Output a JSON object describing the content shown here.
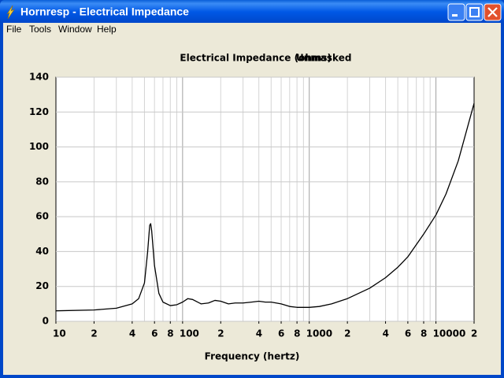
{
  "window": {
    "title": "Hornresp - Electrical Impedance",
    "menu": [
      "File",
      "Tools",
      "Window",
      "Help"
    ]
  },
  "chart_data": {
    "type": "line",
    "title": "Electrical Impedance (ohms)",
    "subtitle": "Unmasked",
    "x_label": "Frequency (hertz)",
    "color": "#000000",
    "log_x": true,
    "grid": true,
    "x": [
      10,
      20,
      30,
      40,
      45,
      50,
      53,
      55,
      56,
      57,
      60,
      65,
      70,
      80,
      90,
      100,
      110,
      120,
      140,
      160,
      180,
      200,
      230,
      260,
      300,
      350,
      400,
      450,
      500,
      600,
      700,
      800,
      1000,
      1200,
      1500,
      2000,
      3000,
      4000,
      5000,
      6000,
      8000,
      10000,
      12000,
      15000,
      20000
    ],
    "values": [
      6,
      6.5,
      7.5,
      10,
      13,
      22,
      40,
      55,
      56,
      52,
      32,
      16,
      11,
      9,
      9.5,
      11,
      13,
      12.5,
      10,
      10.5,
      12,
      11.5,
      10,
      10.5,
      10.5,
      11,
      11.5,
      11,
      11,
      10,
      8.5,
      8,
      8,
      8.5,
      10,
      13,
      19,
      25,
      31,
      37,
      50,
      61,
      73,
      92,
      125
    ],
    "xlim": [
      10,
      20000
    ],
    "ylim": [
      0,
      140
    ],
    "xticks": [
      10,
      {
        "value": 20,
        "label": "2"
      },
      {
        "value": 40,
        "label": "4"
      },
      {
        "value": 60,
        "label": "6"
      },
      {
        "value": 80,
        "label": "8"
      },
      100,
      {
        "value": 200,
        "label": "2"
      },
      {
        "value": 400,
        "label": "4"
      },
      {
        "value": 600,
        "label": "6"
      },
      {
        "value": 800,
        "label": "8"
      },
      1000,
      {
        "value": 2000,
        "label": "2"
      },
      {
        "value": 4000,
        "label": "4"
      },
      {
        "value": 6000,
        "label": "6"
      },
      {
        "value": 8000,
        "label": "8"
      },
      10000,
      {
        "value": 20000,
        "label": "2"
      }
    ],
    "yticks": [
      0,
      20,
      40,
      60,
      80,
      100,
      120,
      140
    ]
  }
}
